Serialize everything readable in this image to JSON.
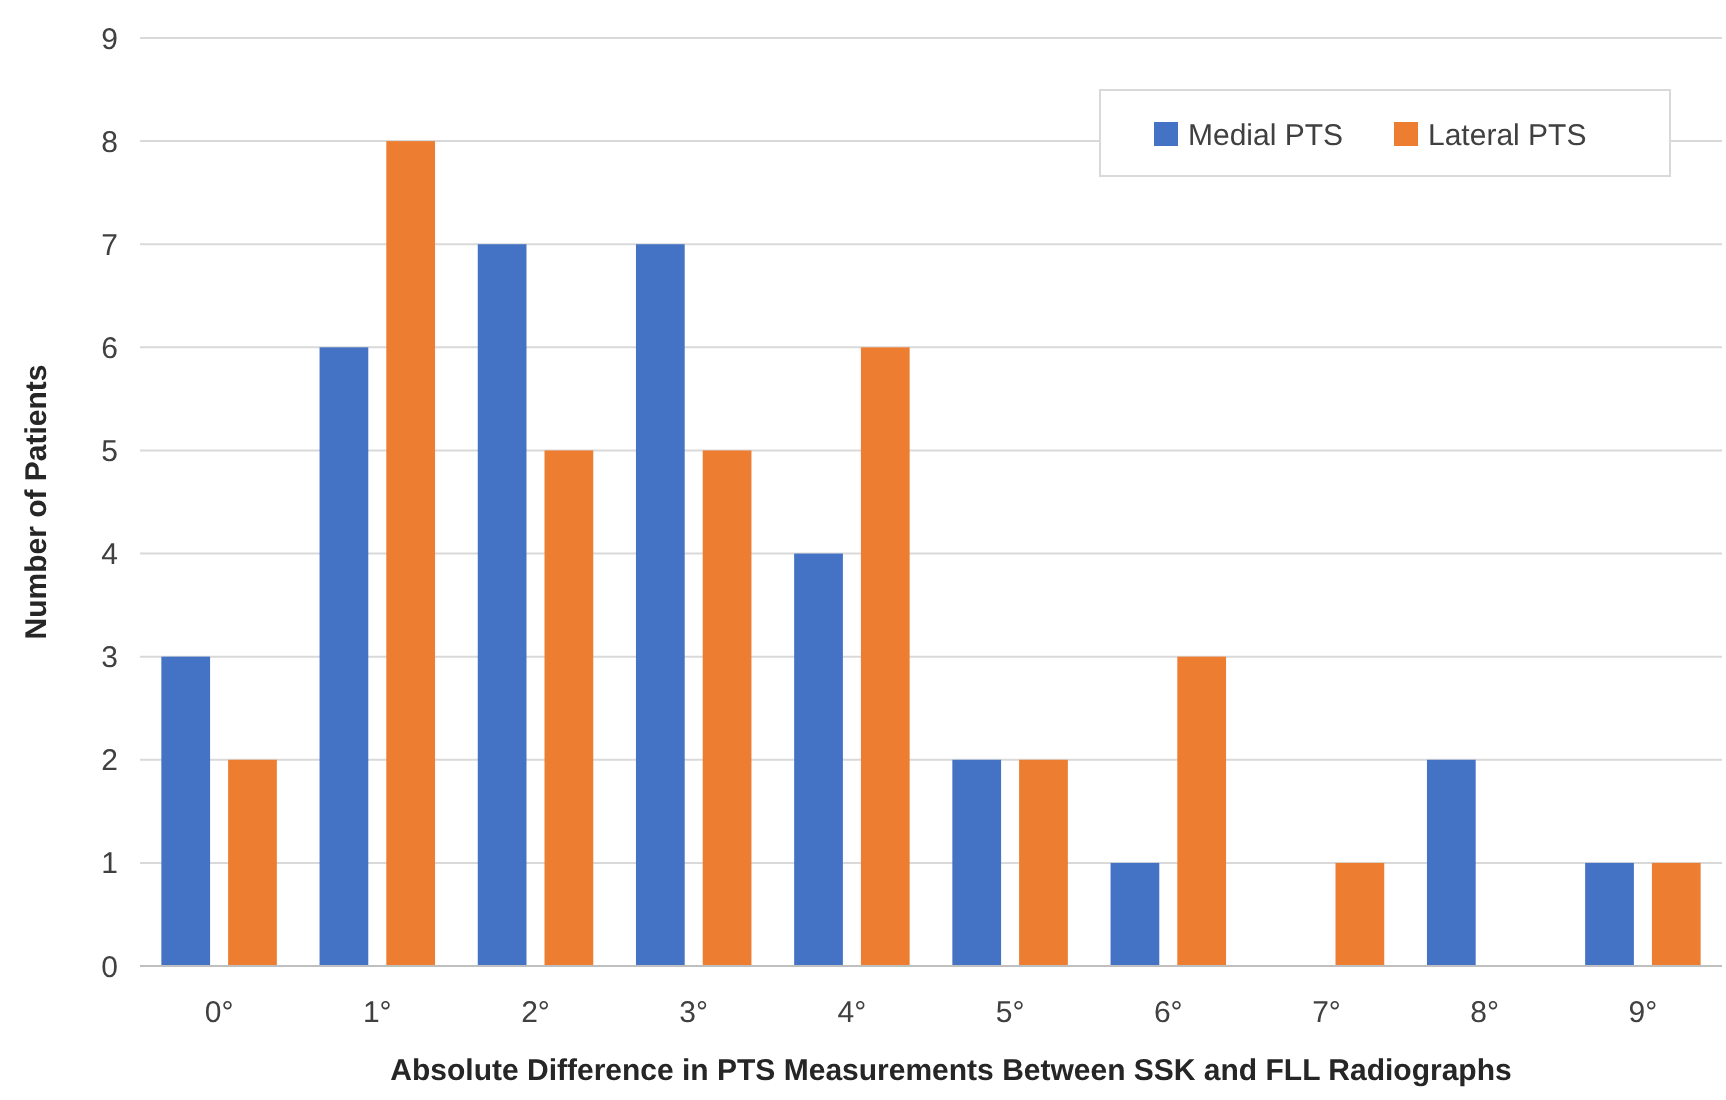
{
  "chart_data": {
    "type": "bar",
    "xlabel": "Absolute Difference in PTS Measurements Between SSK and FLL Radiographs",
    "ylabel": "Number of Patients",
    "categories": [
      "0°",
      "1°",
      "2°",
      "3°",
      "4°",
      "5°",
      "6°",
      "7°",
      "8°",
      "9°"
    ],
    "series": [
      {
        "name": "Medial PTS",
        "color": "#4472c4",
        "values": [
          3,
          6,
          7,
          7,
          4,
          2,
          1,
          0,
          2,
          1
        ]
      },
      {
        "name": "Lateral PTS",
        "color": "#ed7d31",
        "values": [
          2,
          8,
          5,
          5,
          6,
          2,
          3,
          1,
          0,
          1
        ]
      }
    ],
    "ylim": [
      0,
      9
    ],
    "yticks": [
      0,
      1,
      2,
      3,
      4,
      5,
      6,
      7,
      8,
      9
    ],
    "grid": "y",
    "legend": "top right"
  }
}
